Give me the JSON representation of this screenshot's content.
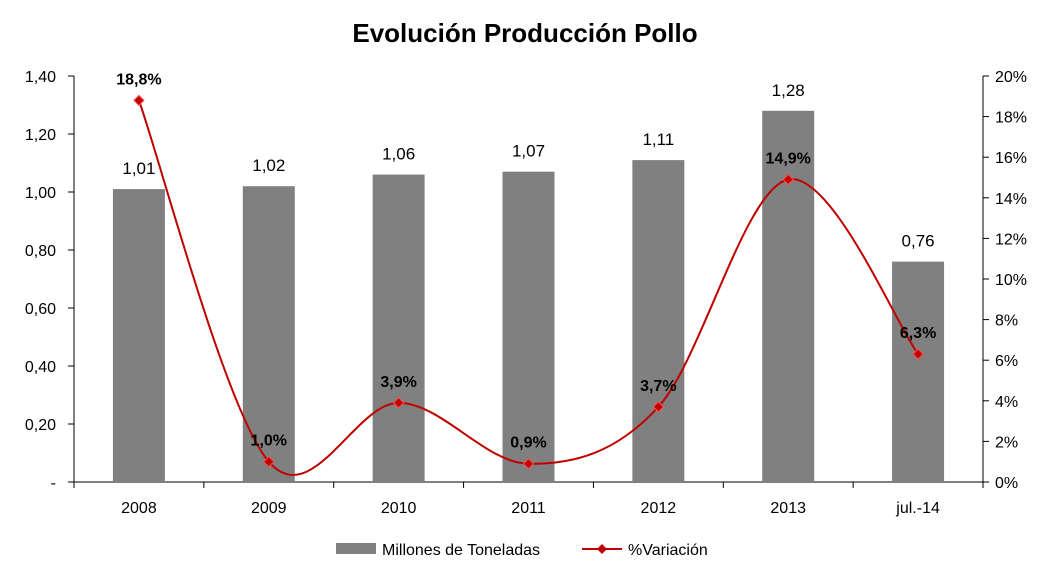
{
  "chart_data": {
    "type": "bar",
    "title": "Evolución Producción Pollo",
    "categories": [
      "2008",
      "2009",
      "2010",
      "2011",
      "2012",
      "2013",
      "jul.-14"
    ],
    "series": [
      {
        "name": "Millones de Toneladas",
        "type": "bar",
        "axis": "left",
        "values": [
          1.01,
          1.02,
          1.06,
          1.07,
          1.11,
          1.28,
          0.76
        ],
        "labels": [
          "1,01",
          "1,02",
          "1,06",
          "1,07",
          "1,11",
          "1,28",
          "0,76"
        ],
        "color": "#808080"
      },
      {
        "name": "%Variación",
        "type": "line",
        "smooth": true,
        "axis": "right",
        "values": [
          18.8,
          1.0,
          3.9,
          0.9,
          3.7,
          14.9,
          6.3
        ],
        "labels": [
          "18,8%",
          "1,0%",
          "3,9%",
          "0,9%",
          "3,7%",
          "14,9%",
          "6,3%"
        ],
        "color": "#C00000"
      }
    ],
    "ylim": [
      0,
      1.4
    ],
    "y_ticks": [
      0,
      0.2,
      0.4,
      0.6,
      0.8,
      1.0,
      1.2,
      1.4
    ],
    "y_tick_labels": [
      "-",
      "0,20",
      "0,40",
      "0,60",
      "0,80",
      "1,00",
      "1,20",
      "1,40"
    ],
    "y2lim": [
      0,
      20
    ],
    "y2_ticks": [
      0,
      2,
      4,
      6,
      8,
      10,
      12,
      14,
      16,
      18,
      20
    ],
    "y2_tick_labels": [
      "0%",
      "2%",
      "4%",
      "6%",
      "8%",
      "10%",
      "12%",
      "14%",
      "16%",
      "18%",
      "20%"
    ],
    "grid": false,
    "legend_position": "bottom"
  }
}
